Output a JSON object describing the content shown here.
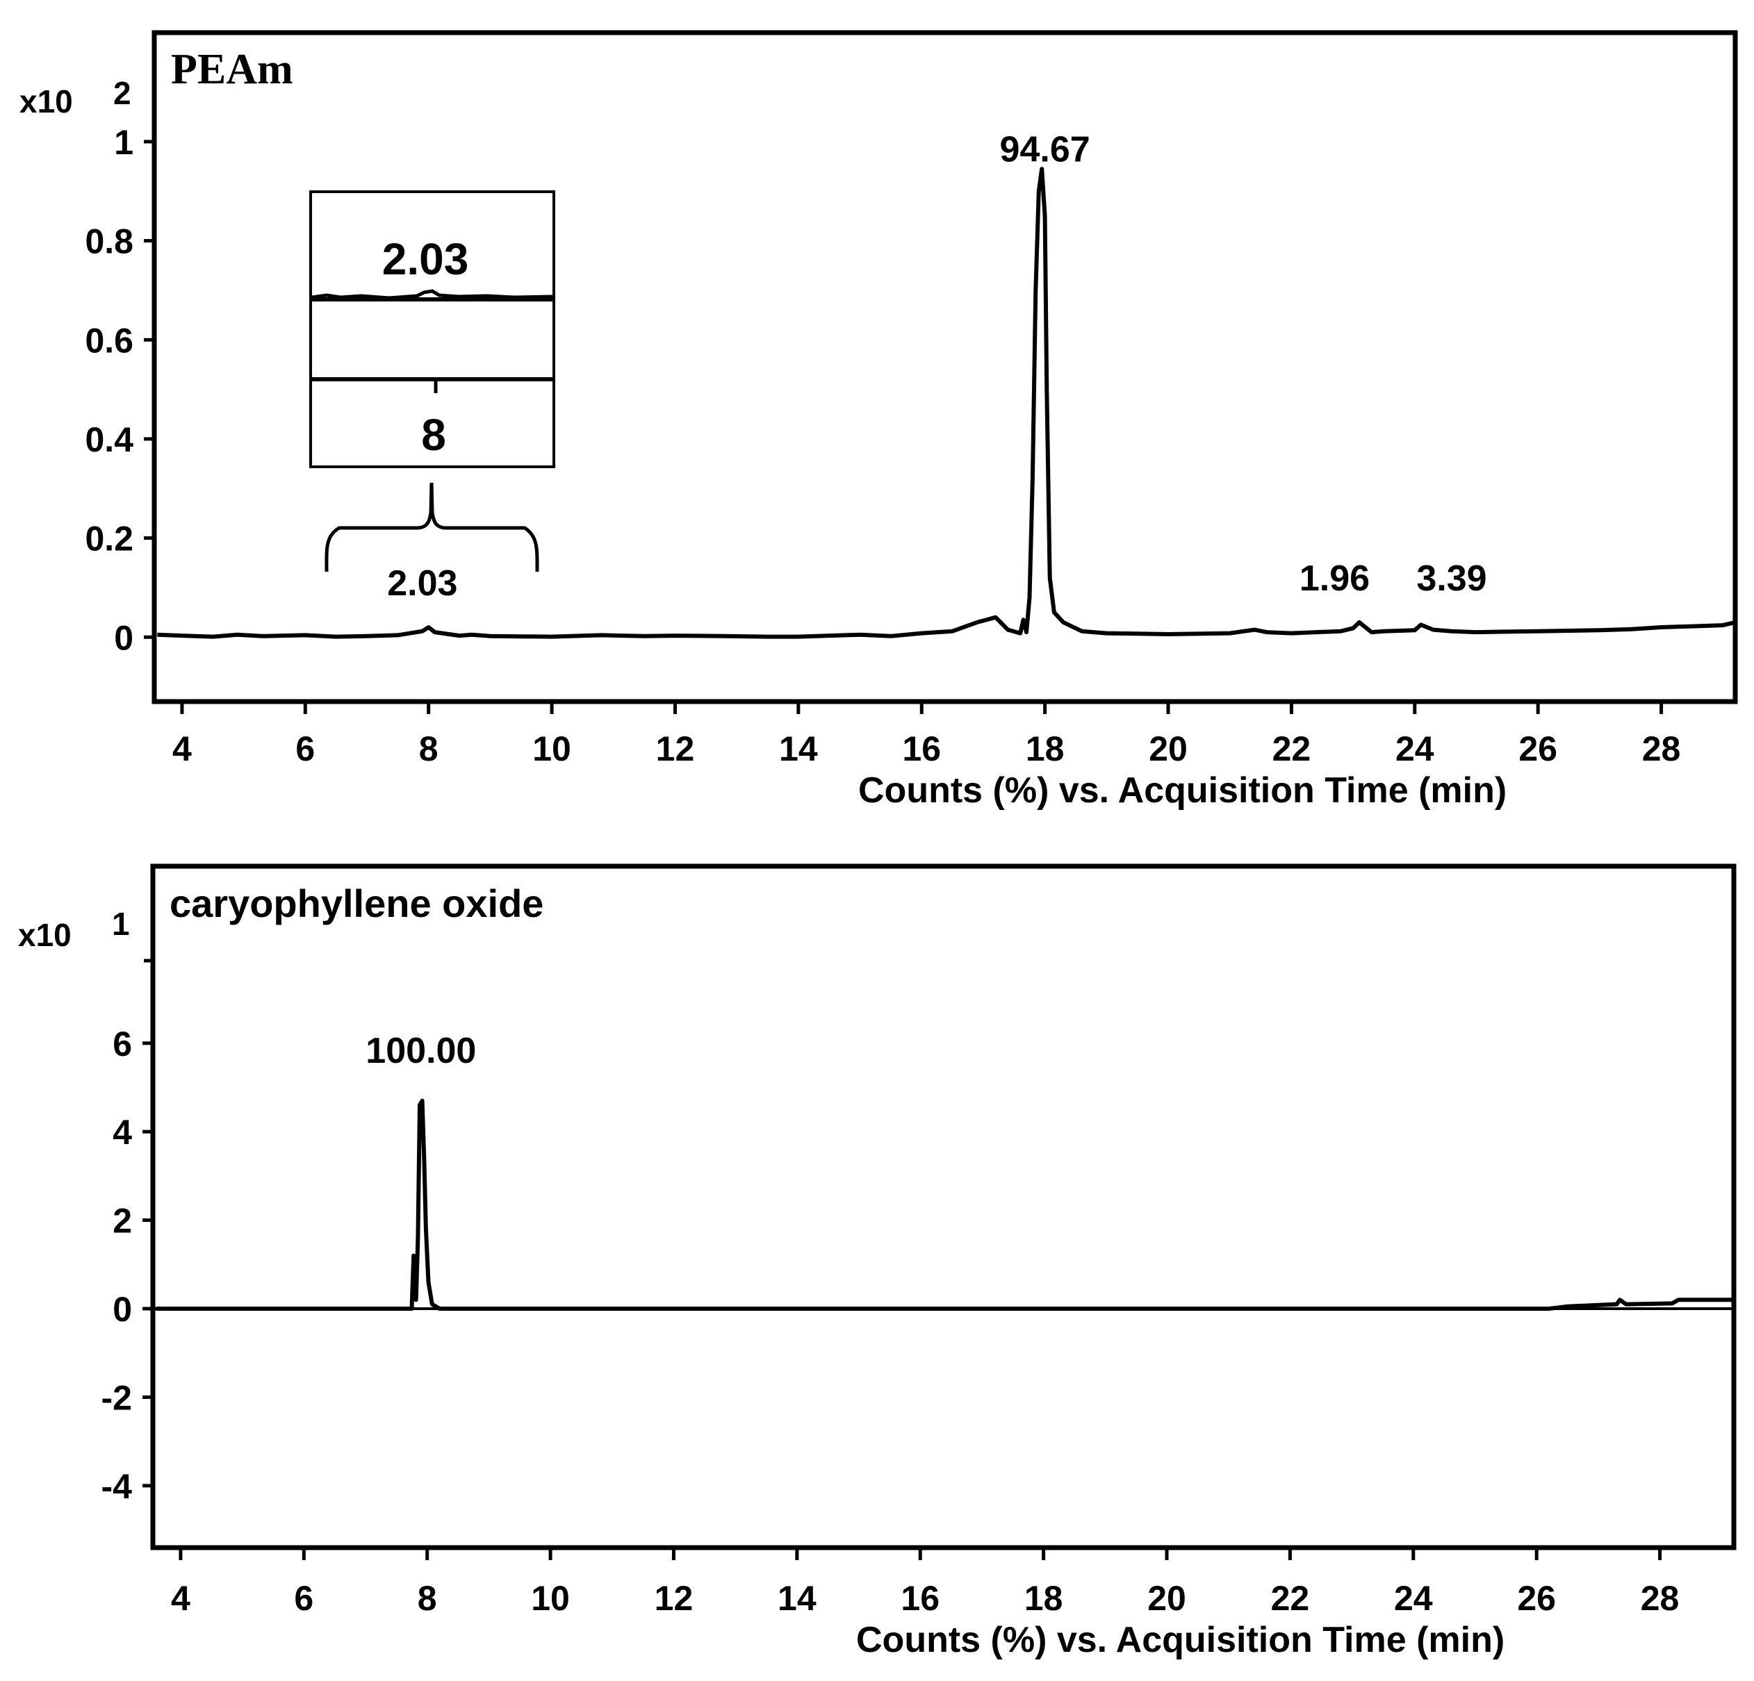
{
  "chart_data": [
    {
      "type": "line",
      "title": "PEAm",
      "y_multiplier": {
        "base": "x10",
        "exponent": "2"
      },
      "xlabel": "Counts (%) vs. Acquisition Time (min)",
      "ylabel": "",
      "xlim": [
        3.55,
        29.2
      ],
      "ylim": [
        -0.13,
        1.22
      ],
      "grid": false,
      "xticks": [
        4,
        6,
        8,
        10,
        12,
        14,
        16,
        18,
        20,
        22,
        24,
        26,
        28
      ],
      "xtick_labels": [
        "4",
        "6",
        "8",
        "10",
        "12",
        "14",
        "16",
        "18",
        "20",
        "22",
        "24",
        "26",
        "28"
      ],
      "yticks": [
        0,
        0.2,
        0.4,
        0.6,
        0.8,
        1
      ],
      "ytick_labels": [
        "0",
        "0.2",
        "0.4",
        "0.6",
        "0.8",
        "1"
      ],
      "series": [
        {
          "x": [
            3.6,
            4.0,
            4.5,
            4.9,
            5.3,
            6.0,
            6.5,
            7.0,
            7.5,
            7.9,
            8.0,
            8.1,
            8.5,
            8.7,
            9.0,
            10.0,
            10.8,
            11.5,
            12.0,
            12.8,
            13.5,
            14.0,
            14.5,
            15.0,
            15.5,
            16.0,
            16.5,
            16.9,
            17.2,
            17.4,
            17.6,
            17.65,
            17.7,
            17.75,
            17.8,
            17.85,
            17.9,
            17.95,
            18.0,
            18.03,
            18.08,
            18.15,
            18.3,
            18.6,
            19.0,
            20.0,
            21.0,
            21.4,
            21.6,
            22.0,
            22.8,
            23.0,
            23.1,
            23.3,
            23.5,
            24.0,
            24.1,
            24.3,
            24.6,
            25.0,
            26.0,
            27.0,
            27.5,
            28.0,
            28.5,
            29.0,
            29.2
          ],
          "values": [
            0.005,
            0.003,
            0.001,
            0.005,
            0.002,
            0.004,
            0.001,
            0.002,
            0.004,
            0.012,
            0.02,
            0.01,
            0.003,
            0.005,
            0.002,
            0.001,
            0.004,
            0.002,
            0.003,
            0.002,
            0.001,
            0.001,
            0.003,
            0.005,
            0.002,
            0.008,
            0.012,
            0.03,
            0.04,
            0.015,
            0.008,
            0.035,
            0.01,
            0.08,
            0.32,
            0.7,
            0.9,
            0.945,
            0.85,
            0.5,
            0.12,
            0.05,
            0.03,
            0.012,
            0.008,
            0.006,
            0.008,
            0.015,
            0.01,
            0.008,
            0.012,
            0.018,
            0.03,
            0.01,
            0.012,
            0.014,
            0.025,
            0.015,
            0.012,
            0.01,
            0.012,
            0.014,
            0.016,
            0.02,
            0.022,
            0.024,
            0.03
          ]
        }
      ],
      "annotations": [
        {
          "text": "94.67",
          "x": 18.0,
          "y": 0.96
        },
        {
          "text": "2.03",
          "x": 7.9,
          "y": 0.045
        },
        {
          "text": "1.96",
          "x": 22.7,
          "y": 0.055
        },
        {
          "text": "3.39",
          "x": 24.6,
          "y": 0.055
        }
      ],
      "inset": {
        "top_label": "2.03",
        "bottom_label": "8"
      }
    },
    {
      "type": "line",
      "title": "caryophyllene oxide",
      "y_multiplier": {
        "base": "x10",
        "exponent": "1"
      },
      "xlabel": "Counts (%) vs. Acquisition Time (min)",
      "ylabel": "",
      "xlim": [
        3.55,
        29.2
      ],
      "ylim": [
        -5.4,
        10.0
      ],
      "grid": false,
      "xticks": [
        4,
        6,
        8,
        10,
        12,
        14,
        16,
        18,
        20,
        22,
        24,
        26,
        28
      ],
      "xtick_labels": [
        "4",
        "6",
        "8",
        "10",
        "12",
        "14",
        "16",
        "18",
        "20",
        "22",
        "24",
        "26",
        "28"
      ],
      "yticks": [
        -4,
        -2,
        0,
        2,
        4,
        6
      ],
      "ytick_labels": [
        "-4",
        "-2",
        "0",
        "2",
        "4",
        "6"
      ],
      "series": [
        {
          "x": [
            3.6,
            7.6,
            7.75,
            7.78,
            7.82,
            7.85,
            7.88,
            7.92,
            7.95,
            7.98,
            8.02,
            8.08,
            8.2,
            10.0,
            15.0,
            20.0,
            25.0,
            26.2,
            26.5,
            27.3,
            27.35,
            27.45,
            28.2,
            28.3,
            29.2
          ],
          "values": [
            0.0,
            0.0,
            0.0,
            1.2,
            0.2,
            1.6,
            4.6,
            4.7,
            3.4,
            1.8,
            0.6,
            0.1,
            0.0,
            0.0,
            0.0,
            0.0,
            0.0,
            0.0,
            0.05,
            0.1,
            0.2,
            0.1,
            0.12,
            0.2,
            0.2
          ]
        }
      ],
      "annotations": [
        {
          "text": "100.00",
          "x": 7.9,
          "y": 5.4
        }
      ]
    }
  ]
}
